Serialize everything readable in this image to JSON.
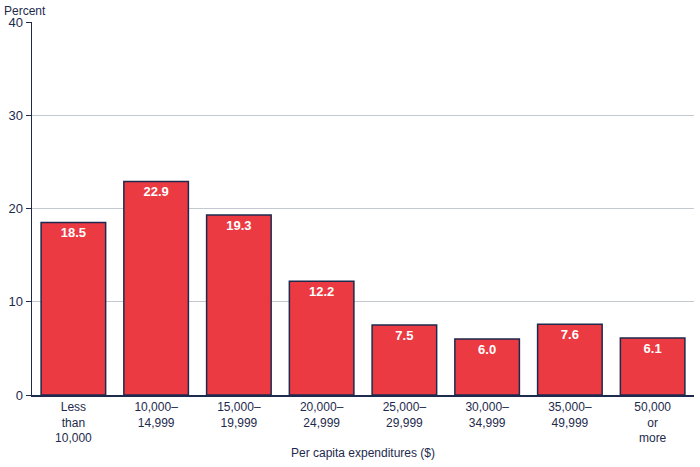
{
  "chart_data": {
    "type": "bar",
    "ylabel": "Percent",
    "xlabel": "Per capita expenditures ($)",
    "categories": [
      "Less\nthan\n10,000",
      "10,000–\n14,999",
      "15,000–\n19,999",
      "20,000–\n24,999",
      "25,000–\n29,999",
      "30,000–\n34,999",
      "35,000–\n49,999",
      "50,000\nor\nmore"
    ],
    "values": [
      18.5,
      22.9,
      19.3,
      12.2,
      7.5,
      6.0,
      7.6,
      6.1
    ],
    "value_labels": [
      "18.5",
      "22.9",
      "19.3",
      "12.2",
      "7.5",
      "6.0",
      "7.6",
      "6.1"
    ],
    "color": "#ec3a43",
    "ylim": [
      0,
      40
    ],
    "yticks": [
      0,
      10,
      20,
      30,
      40
    ],
    "grid": true,
    "data_labels": true
  }
}
